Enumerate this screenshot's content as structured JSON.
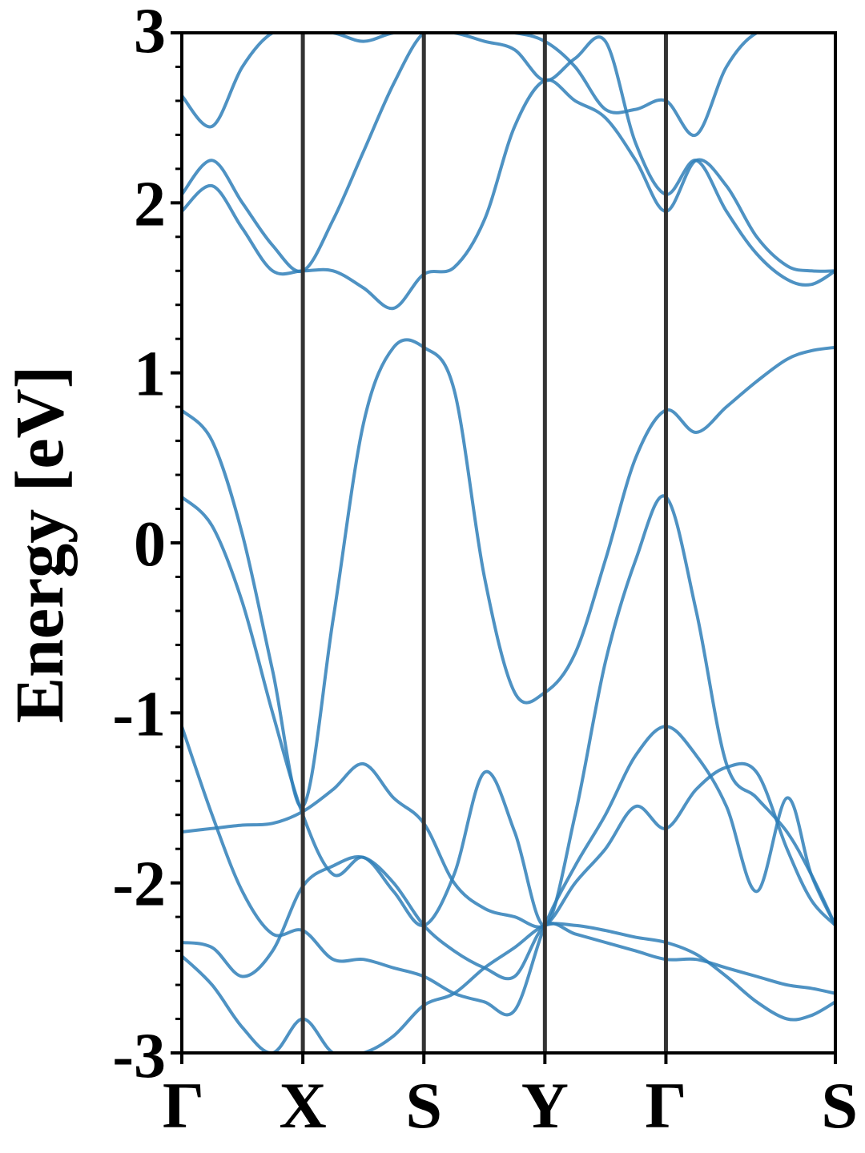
{
  "chart_data": {
    "type": "line",
    "title": "",
    "xlabel": "",
    "ylabel": "Energy [eV]",
    "ylim": [
      -3,
      3
    ],
    "xlim": [
      0,
      5.4
    ],
    "y_ticks": [
      "3",
      "2",
      "1",
      "0",
      "-1",
      "-2",
      "-3"
    ],
    "y_tick_values": [
      3,
      2,
      1,
      0,
      -1,
      -2,
      -3
    ],
    "y_minor_step": 0.2,
    "x_ticks": [
      "Γ",
      "X",
      "S",
      "Y",
      "Γ",
      "S"
    ],
    "x_tick_values": [
      0,
      1,
      2,
      3,
      4,
      5.4
    ],
    "grid": false,
    "line_color": "#2f7fb8",
    "divider_color": "#333333",
    "series": [
      {
        "x": [
          0,
          0.25,
          0.5,
          0.75,
          1,
          1.25,
          1.5,
          1.75,
          2,
          2.25,
          2.5,
          2.75,
          3,
          3.25,
          3.5,
          3.75,
          4,
          4.25,
          4.5,
          4.75,
          5,
          5.2,
          5.4
        ],
        "values": [
          0.78,
          0.6,
          0.05,
          -0.75,
          -1.55,
          -0.45,
          0.7,
          1.15,
          1.15,
          0.9,
          -0.2,
          -0.88,
          -0.88,
          -0.65,
          -0.1,
          0.5,
          0.78,
          0.65,
          0.8,
          0.95,
          1.08,
          1.13,
          1.15
        ]
      },
      {
        "x": [
          0,
          0.25,
          0.5,
          0.75,
          1,
          1.25,
          1.5,
          1.75,
          2,
          2.25,
          2.5,
          2.75,
          3,
          3.25,
          3.5,
          3.75,
          4,
          4.25,
          4.5,
          4.75,
          5,
          5.2,
          5.4
        ],
        "values": [
          0.27,
          0.1,
          -0.35,
          -1.0,
          -1.6,
          -1.95,
          -1.85,
          -2.05,
          -2.25,
          -1.95,
          -1.35,
          -1.7,
          -2.25,
          -1.6,
          -0.7,
          -0.1,
          0.27,
          -0.4,
          -1.3,
          -1.5,
          -1.7,
          -1.95,
          -2.25
        ]
      },
      {
        "x": [
          0,
          0.25,
          0.5,
          0.75,
          1,
          1.25,
          1.5,
          1.75,
          2,
          2.25,
          2.5,
          2.75,
          3,
          3.25,
          3.5,
          3.75,
          4,
          4.25,
          4.5,
          4.75,
          5,
          5.2,
          5.4
        ],
        "values": [
          -1.08,
          -1.6,
          -2.05,
          -2.3,
          -2.28,
          -2.45,
          -2.45,
          -2.5,
          -2.55,
          -2.65,
          -2.7,
          -2.75,
          -2.25,
          -1.9,
          -1.6,
          -1.25,
          -1.08,
          -1.25,
          -1.55,
          -2.05,
          -1.5,
          -1.95,
          -2.25
        ]
      },
      {
        "x": [
          0,
          0.25,
          0.5,
          0.75,
          1,
          1.25,
          1.5,
          1.75,
          2,
          2.25,
          2.5,
          2.75,
          3,
          3.25,
          3.5,
          3.75,
          4,
          4.25,
          4.5,
          4.75,
          5,
          5.2,
          5.4
        ],
        "values": [
          -1.7,
          -1.68,
          -1.66,
          -1.65,
          -1.58,
          -1.45,
          -1.3,
          -1.5,
          -1.65,
          -2.0,
          -2.15,
          -2.2,
          -2.25,
          -2.0,
          -1.8,
          -1.55,
          -1.68,
          -1.45,
          -1.32,
          -1.35,
          -1.8,
          -2.1,
          -2.25
        ]
      },
      {
        "x": [
          0,
          0.25,
          0.5,
          0.75,
          1,
          1.25,
          1.5,
          1.75,
          2,
          2.25,
          2.5,
          2.75,
          3,
          3.25,
          3.5,
          3.75,
          4,
          4.25,
          4.5,
          4.75,
          5,
          5.2,
          5.4
        ],
        "values": [
          -2.35,
          -2.38,
          -2.55,
          -2.4,
          -2.02,
          -1.9,
          -1.85,
          -2.0,
          -2.25,
          -2.4,
          -2.5,
          -2.55,
          -2.25,
          -2.3,
          -2.35,
          -2.4,
          -2.45,
          -2.45,
          -2.5,
          -2.55,
          -2.6,
          -2.62,
          -2.65
        ]
      },
      {
        "x": [
          0,
          0.25,
          0.5,
          0.75,
          1,
          1.25,
          1.5,
          1.75,
          2,
          2.25,
          2.5,
          2.75,
          3,
          3.25,
          3.5,
          3.75,
          4,
          4.25,
          4.5,
          4.75,
          5,
          5.2,
          5.4
        ],
        "values": [
          -2.43,
          -2.6,
          -2.85,
          -3.0,
          -2.8,
          -3.0,
          -3.0,
          -2.9,
          -2.72,
          -2.65,
          -2.5,
          -2.38,
          -2.25,
          -2.25,
          -2.28,
          -2.32,
          -2.35,
          -2.42,
          -2.55,
          -2.7,
          -2.8,
          -2.78,
          -2.7
        ]
      },
      {
        "x": [
          0,
          0.25,
          0.5,
          0.75,
          1,
          1.25,
          1.5,
          1.75,
          2,
          2.25,
          2.5,
          2.75,
          3,
          3.25,
          3.5,
          3.75,
          4,
          4.25,
          4.5,
          4.75,
          5,
          5.2,
          5.4
        ],
        "values": [
          1.95,
          2.1,
          1.85,
          1.6,
          1.6,
          1.6,
          1.5,
          1.38,
          1.58,
          1.62,
          1.9,
          2.45,
          2.72,
          2.6,
          2.5,
          2.25,
          1.95,
          2.25,
          2.1,
          1.8,
          1.63,
          1.6,
          1.6
        ]
      },
      {
        "x": [
          0,
          0.25,
          0.5,
          0.75,
          1,
          1.25,
          1.5,
          1.75,
          2,
          2.25,
          2.5,
          2.75,
          3,
          3.25,
          3.5,
          3.75,
          4,
          4.25,
          4.5,
          4.75,
          5,
          5.2,
          5.4
        ],
        "values": [
          2.05,
          2.25,
          2.0,
          1.75,
          1.6,
          1.9,
          2.3,
          2.7,
          3.0,
          3.0,
          2.95,
          2.9,
          2.72,
          2.85,
          2.95,
          2.35,
          2.05,
          2.25,
          1.95,
          1.7,
          1.55,
          1.52,
          1.6
        ]
      },
      {
        "x": [
          0,
          0.25,
          0.5,
          0.75,
          1,
          1.25,
          1.5,
          1.75,
          2,
          2.25,
          2.5,
          2.75,
          3,
          3.25,
          3.5,
          3.75,
          4,
          4.25,
          4.5,
          4.75,
          5,
          5.2,
          5.4
        ],
        "values": [
          2.63,
          2.45,
          2.8,
          3.0,
          3.0,
          3.0,
          2.95,
          3.0,
          3.0,
          3.0,
          3.0,
          3.0,
          2.95,
          2.8,
          2.55,
          2.55,
          2.6,
          2.4,
          2.8,
          3.0,
          3.0,
          3.0,
          3.0
        ]
      }
    ]
  }
}
